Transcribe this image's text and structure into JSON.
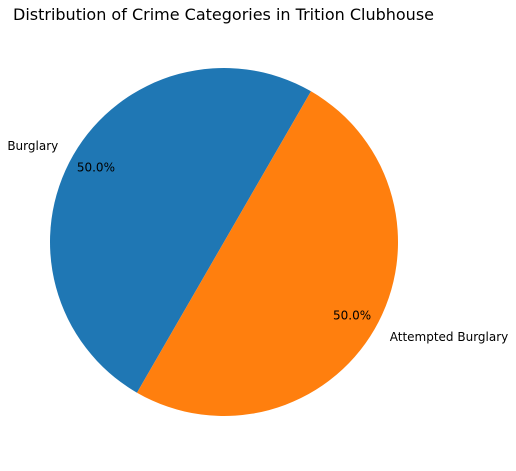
{
  "chart_data": {
    "type": "pie",
    "title": "Distribution of Crime Categories in Trition Clubhouse",
    "categories": [
      "Burglary",
      "Attempted Burglary"
    ],
    "values": [
      50,
      50
    ],
    "percent_labels": [
      "50.0%",
      "50.0%"
    ],
    "colors": [
      "#1f77b4",
      "#ff7f0e"
    ],
    "start_angle_deg": 60,
    "legend": "none"
  }
}
